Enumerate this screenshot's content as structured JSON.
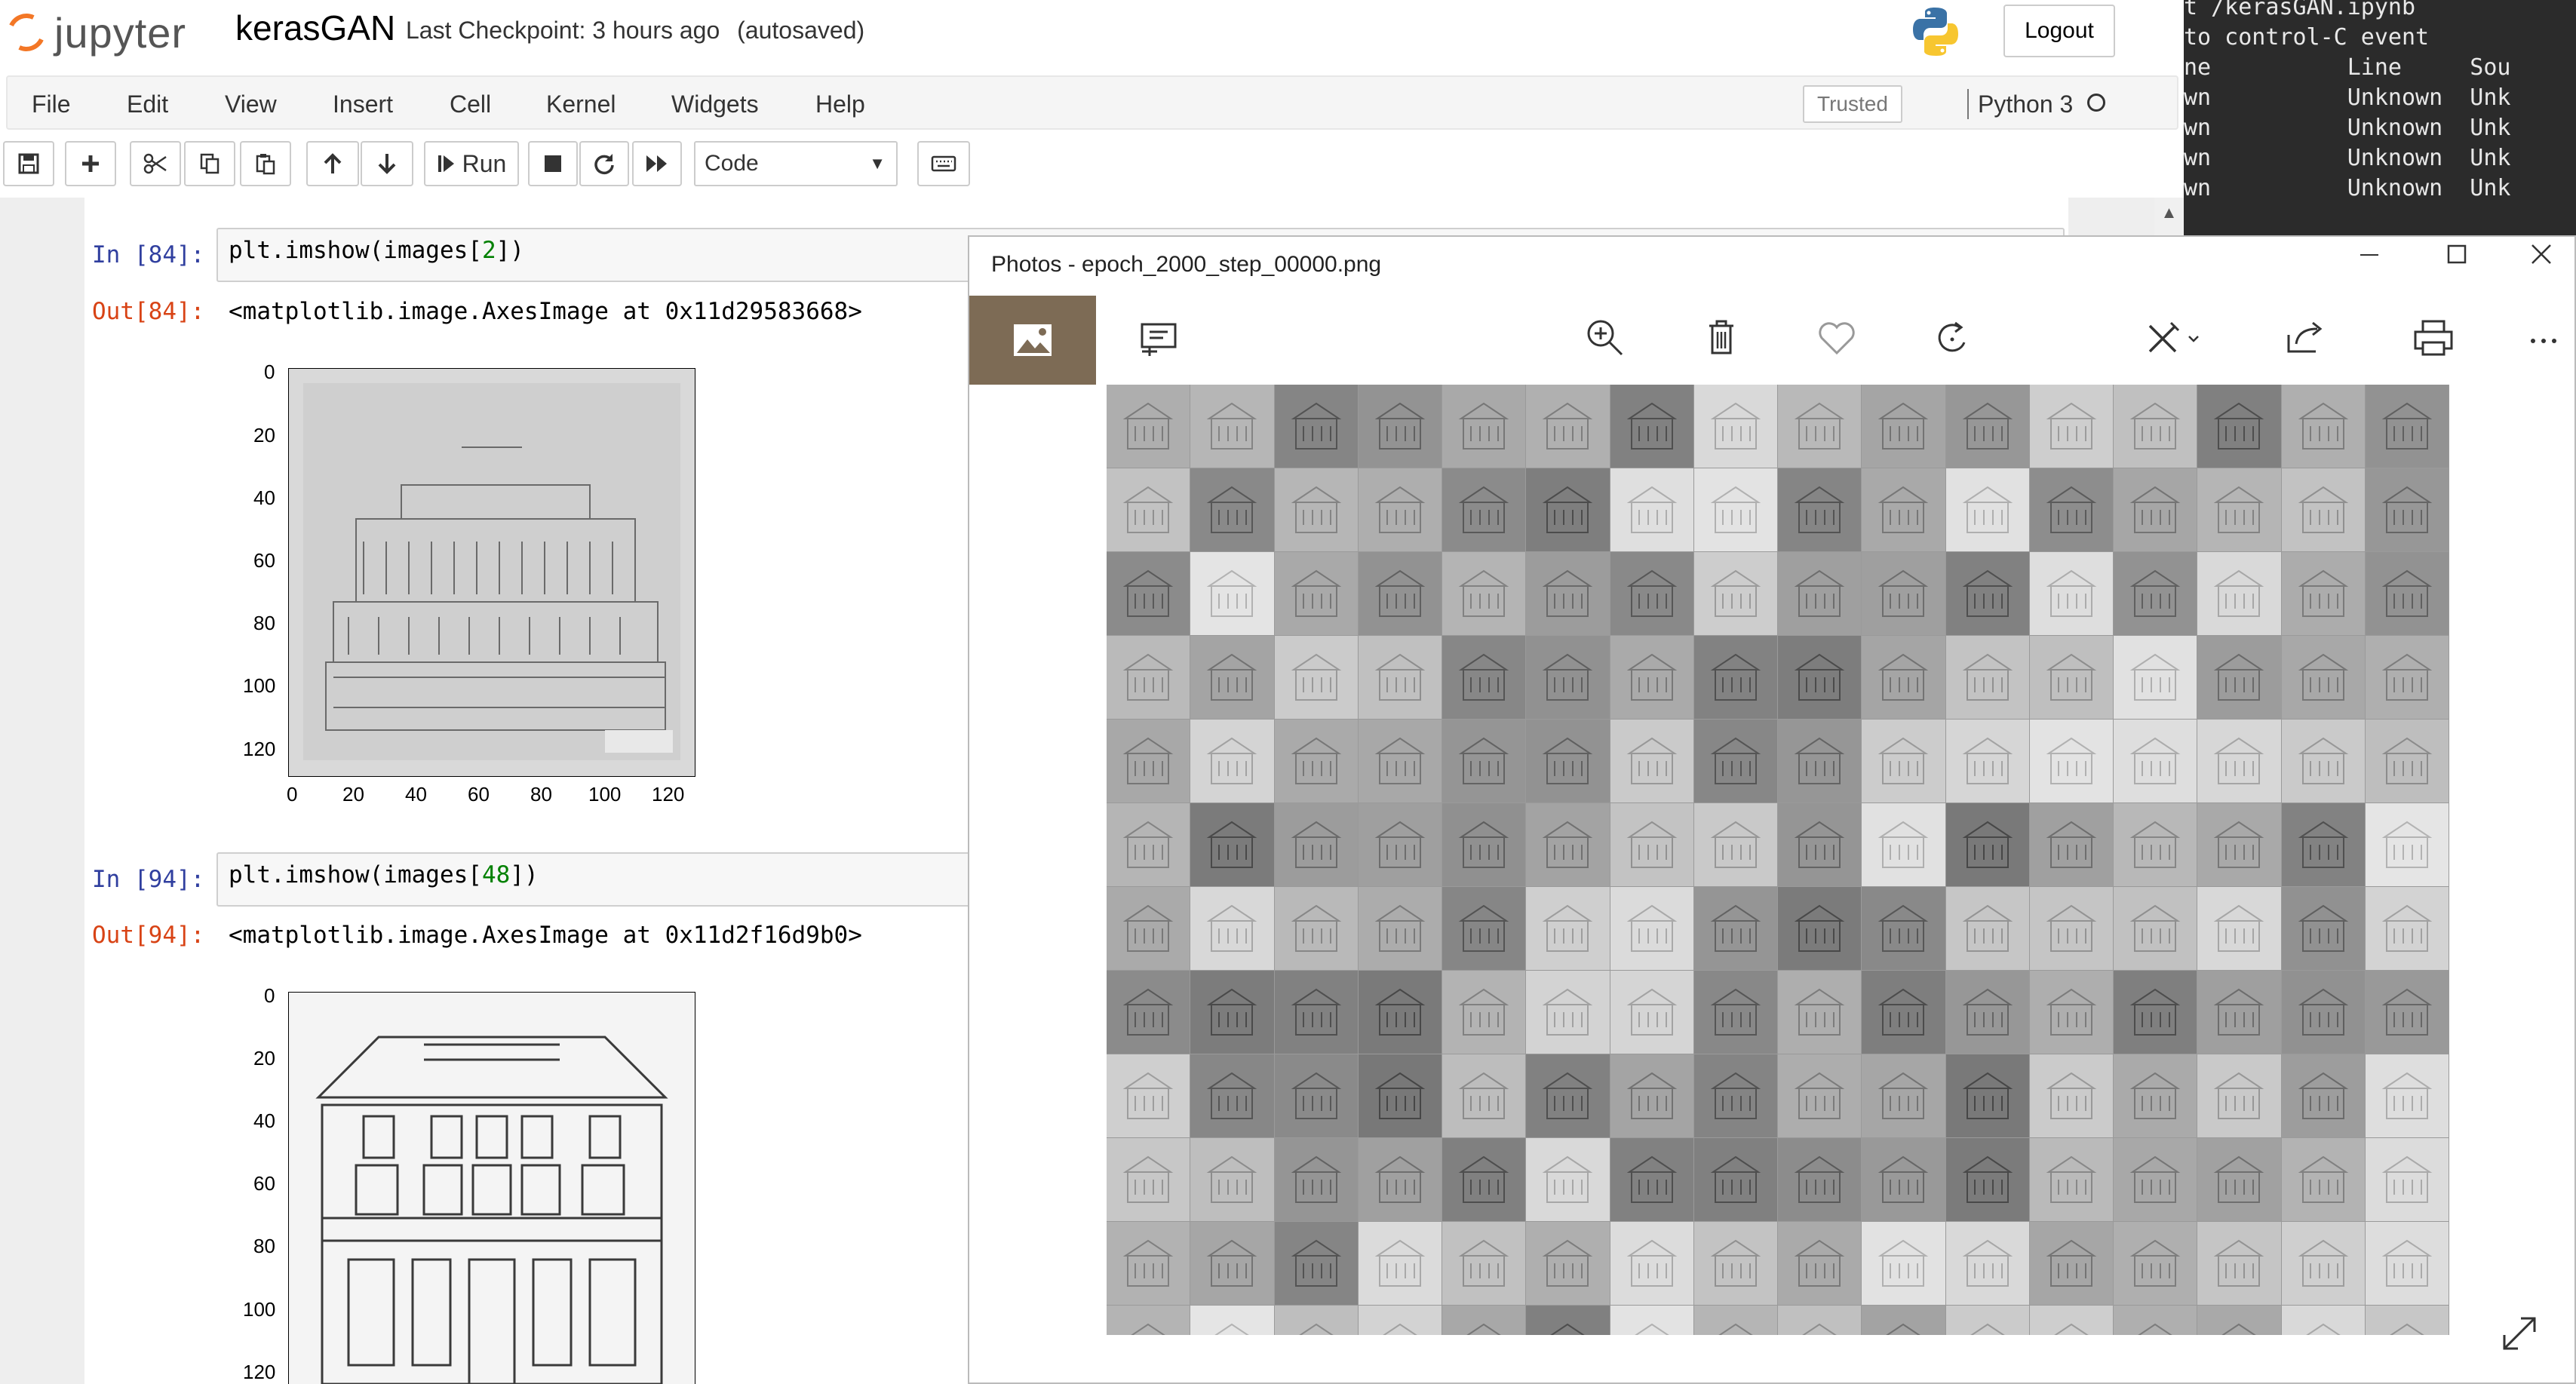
{
  "header": {
    "logo_text": "jupyter",
    "notebook_name": "kerasGAN",
    "checkpoint_text": "Last Checkpoint: 3 hours ago",
    "autosave_text": "(autosaved)",
    "logout_label": "Logout"
  },
  "menubar": {
    "items": [
      "File",
      "Edit",
      "View",
      "Insert",
      "Cell",
      "Kernel",
      "Widgets",
      "Help"
    ],
    "trusted_label": "Trusted",
    "kernel_name": "Python 3"
  },
  "toolbar": {
    "run_label": "Run",
    "cell_type": "Code"
  },
  "cells": [
    {
      "in_prompt": "In [84]:",
      "code_prefix": "plt.imshow(images[",
      "code_num": "2",
      "code_suffix": "])",
      "out_prompt": "Out[84]:",
      "output_text": "<matplotlib.image.AxesImage at 0x11d29583668>",
      "y_ticks": [
        "0",
        "20",
        "40",
        "60",
        "80",
        "100",
        "120"
      ],
      "x_ticks": [
        "0",
        "20",
        "40",
        "60",
        "80",
        "100",
        "120"
      ]
    },
    {
      "in_prompt": "In [94]:",
      "code_prefix": "plt.imshow(images[",
      "code_num": "48",
      "code_suffix": "])",
      "out_prompt": "Out[94]:",
      "output_text": "<matplotlib.image.AxesImage at 0x11d2f16d9b0>",
      "y_ticks": [
        "0",
        "20",
        "40",
        "60",
        "80",
        "100",
        "120"
      ]
    }
  ],
  "terminal": {
    "lines": [
      "t /kerasGAN.ipynb",
      "to control-C event",
      "ne          Line     Sou",
      "wn          Unknown  Unk",
      "wn          Unknown  Unk",
      "wn          Unknown  Unk",
      "wn          Unknown  Unk"
    ]
  },
  "photos": {
    "title": "Photos - epoch_2000_step_00000.png",
    "minimize_icon": "minimize-icon",
    "maximize_icon": "maximize-icon",
    "close_icon": "close-icon"
  }
}
